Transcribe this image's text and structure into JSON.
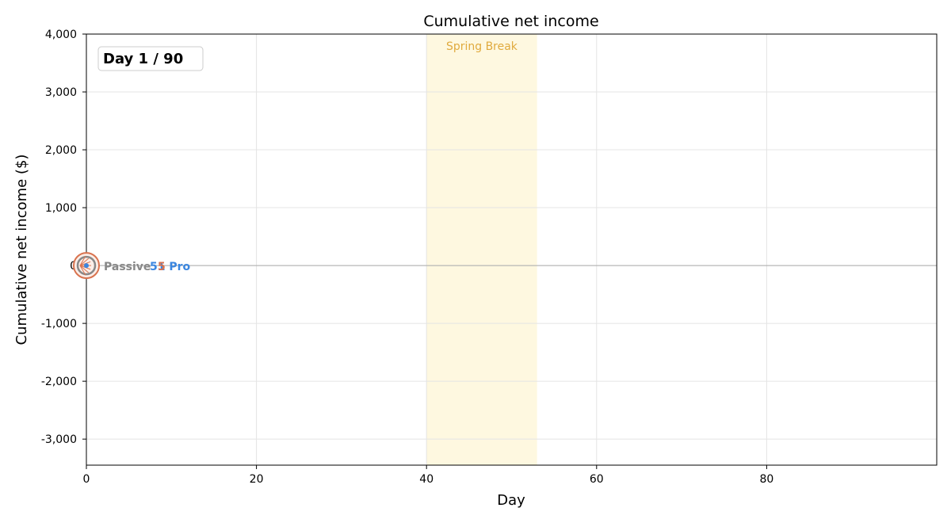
{
  "chart_data": {
    "type": "line",
    "title": "Cumulative net income",
    "xlabel": "Day",
    "ylabel": "Cumulative net income ($)",
    "xlim": [
      0,
      100
    ],
    "ylim": [
      -3450,
      4000
    ],
    "x_ticks": [
      0,
      20,
      40,
      60,
      80
    ],
    "y_ticks": [
      -3000,
      -2000,
      -1000,
      0,
      1000,
      2000,
      3000,
      4000
    ],
    "y_tick_labels": [
      "-3,000",
      "-2,000",
      "-1,000",
      "0",
      "1,000",
      "2,000",
      "3,000",
      "4,000"
    ],
    "grid": true,
    "zero_line": true,
    "frame_counter": {
      "label": "Day",
      "current": 1,
      "total": 90,
      "text": "Day  1 / 90"
    },
    "shaded_band": {
      "label": "Spring Break",
      "x_start": 40,
      "x_end": 53,
      "color": "#fdf3c7",
      "label_color": "#e0aa3e"
    },
    "series": [
      {
        "name": "Passive",
        "color": "#888888",
        "x": [
          0
        ],
        "y": [
          0
        ]
      },
      {
        "name": "5",
        "color": "#d9734f",
        "x": [
          0
        ],
        "y": [
          0
        ]
      },
      {
        "name": "51 Pro",
        "color": "#3a86e0",
        "x": [
          0
        ],
        "y": [
          0
        ]
      }
    ]
  }
}
